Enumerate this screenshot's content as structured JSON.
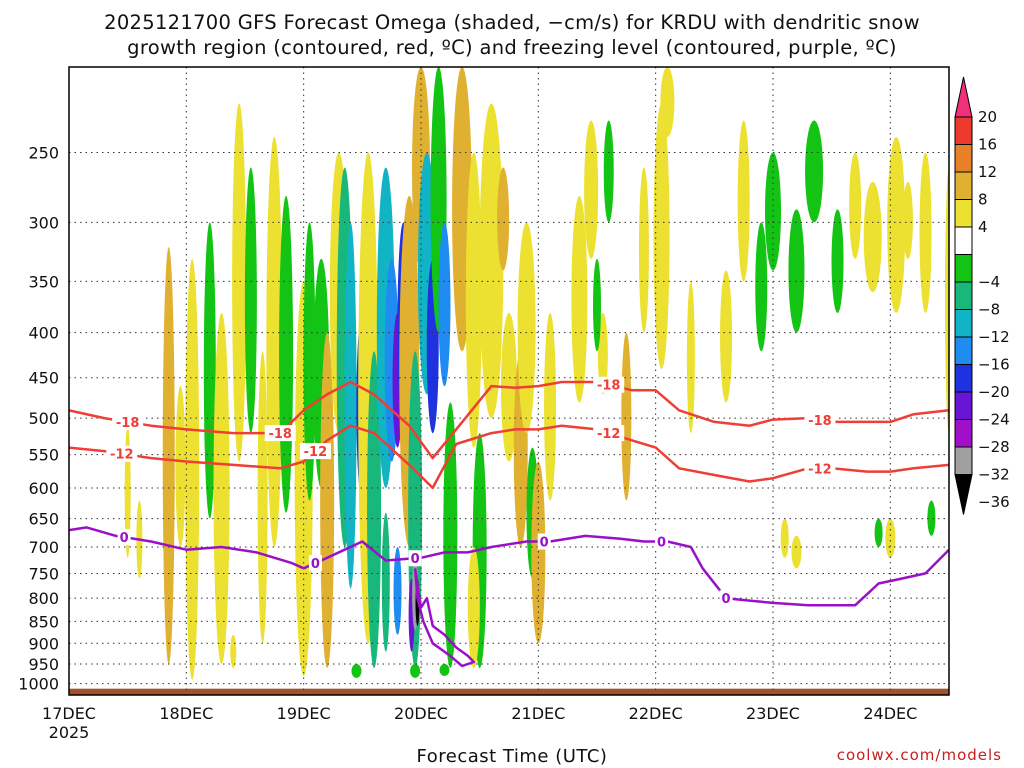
{
  "chart_data": {
    "type": "heatmap",
    "title_lines": [
      "2025121700 GFS Forecast Omega (shaded, −cm/s) for KRDU with dendritic snow",
      "growth region (contoured, red, ºC) and freezing level (contoured, purple, ºC)"
    ],
    "xlabel": "Forecast Time (UTC)",
    "ylabel": "",
    "x_ticks": [
      "17DEC",
      "18DEC",
      "19DEC",
      "20DEC",
      "21DEC",
      "22DEC",
      "23DEC",
      "24DEC"
    ],
    "x_year": "2025",
    "x_range_days": [
      0,
      7.5
    ],
    "y_ticks": [
      250,
      300,
      350,
      400,
      450,
      500,
      550,
      600,
      650,
      700,
      750,
      800,
      850,
      900,
      950,
      1000
    ],
    "y_range_hpa": [
      200,
      1030
    ],
    "y_scale": "log pressure (inverted)",
    "grid": true,
    "colorbar": {
      "ticks": [
        "20",
        "16",
        "12",
        "8",
        "4",
        "−4",
        "−8",
        "−12",
        "−16",
        "−20",
        "−24",
        "−28",
        "−32",
        "−36"
      ],
      "colors": [
        "#f0307a",
        "#ee3a2c",
        "#e8802a",
        "#e0b030",
        "#ece030",
        "#ffffff",
        "#14c414",
        "#18b87c",
        "#10b4c4",
        "#1e8cf0",
        "#1e32e0",
        "#6a14d8",
        "#a010c8",
        "#a0a0a0",
        "#000000"
      ]
    },
    "contours": [
      {
        "name": "-18",
        "color": "#ee3e36",
        "label_text": "-18",
        "labels_at_day": [
          0.5,
          1.8,
          4.6,
          6.4
        ],
        "days": [
          0,
          0.3,
          0.7,
          1.0,
          1.4,
          1.8,
          2.0,
          2.2,
          2.4,
          2.6,
          2.9,
          3.1,
          3.3,
          3.6,
          3.8,
          4.0,
          4.2,
          4.5,
          4.8,
          5.0,
          5.2,
          5.5,
          5.8,
          6.0,
          6.3,
          6.5,
          6.8,
          7.0,
          7.2,
          7.5
        ],
        "values_hpa": [
          490,
          500,
          510,
          515,
          520,
          520,
          490,
          470,
          455,
          470,
          510,
          555,
          515,
          460,
          462,
          460,
          455,
          455,
          465,
          465,
          490,
          505,
          510,
          502,
          500,
          505,
          505,
          505,
          495,
          490
        ]
      },
      {
        "name": "-12",
        "color": "#ee3e36",
        "label_text": "-12",
        "labels_at_day": [
          0.45,
          2.1,
          4.6,
          6.4
        ],
        "days": [
          0,
          0.3,
          0.7,
          1.0,
          1.4,
          1.8,
          2.0,
          2.2,
          2.4,
          2.6,
          2.9,
          3.1,
          3.3,
          3.6,
          3.8,
          4.0,
          4.2,
          4.5,
          4.8,
          5.0,
          5.2,
          5.5,
          5.8,
          6.0,
          6.3,
          6.5,
          6.8,
          7.0,
          7.2,
          7.5
        ],
        "values_hpa": [
          540,
          545,
          555,
          560,
          565,
          570,
          560,
          530,
          510,
          520,
          565,
          600,
          535,
          520,
          515,
          515,
          510,
          515,
          530,
          540,
          570,
          580,
          590,
          585,
          570,
          570,
          575,
          575,
          570,
          565
        ]
      },
      {
        "name": "0",
        "color": "#9a10c8",
        "label_text": "0",
        "labels_at_day": [
          0.47,
          2.1,
          2.95,
          4.05,
          5.05,
          5.6
        ],
        "days": [
          0,
          0.15,
          0.4,
          0.7,
          1.0,
          1.3,
          1.6,
          1.9,
          2.0,
          2.2,
          2.5,
          2.7,
          3.0,
          3.2,
          3.4,
          3.6,
          3.9,
          4.1,
          4.4,
          4.7,
          4.9,
          5.1,
          5.3,
          5.4,
          5.6,
          5.8,
          6.0,
          6.3,
          6.7,
          6.9,
          7.1,
          7.3,
          7.5
        ],
        "values_hpa": [
          670,
          665,
          680,
          690,
          705,
          700,
          710,
          730,
          740,
          720,
          690,
          725,
          720,
          710,
          710,
          700,
          690,
          690,
          680,
          685,
          690,
          690,
          700,
          740,
          800,
          805,
          810,
          815,
          815,
          770,
          760,
          750,
          705
        ]
      }
    ],
    "terrain_color": "#a0522d"
  },
  "credit": "coolwx.com/models"
}
